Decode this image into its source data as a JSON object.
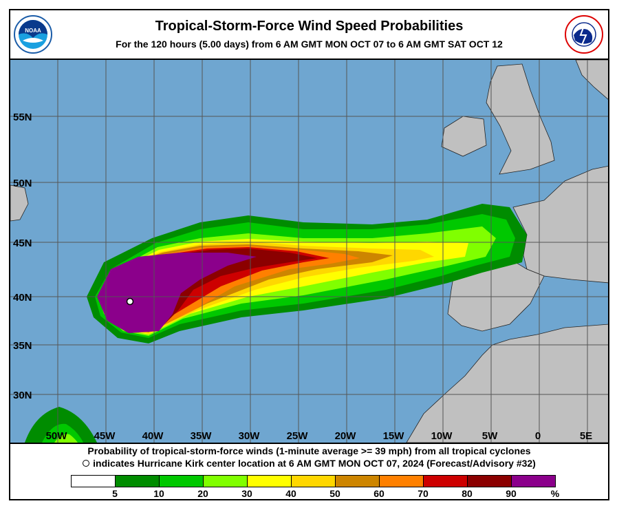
{
  "header": {
    "title": "Tropical-Storm-Force Wind Speed Probabilities",
    "subtitle": "For the 120 hours (5.00 days) from 6 AM GMT MON OCT 07 to 6 AM GMT SAT OCT 12",
    "left_logo": "NOAA",
    "right_logo": "NATIONAL WEATHER SERVICE"
  },
  "map": {
    "lat_labels": [
      "55N",
      "50N",
      "45N",
      "40N",
      "35N",
      "30N"
    ],
    "lon_labels": [
      "50W",
      "45W",
      "40W",
      "35W",
      "30W",
      "25W",
      "20W",
      "15W",
      "10W",
      "5W",
      "0",
      "5E"
    ],
    "ocean_color": "#6fa6d0",
    "land_color": "#c0c0c0",
    "storm_marker": "Hurricane Kirk center (open circle)"
  },
  "footer": {
    "line1": "Probability of tropical-storm-force winds (1-minute average >= 39 mph) from all tropical cyclones",
    "line2": "indicates Hurricane Kirk center location at 6 AM GMT MON OCT 07, 2024 (Forecast/Advisory #32)"
  },
  "legend": {
    "colors": [
      "#ffffff",
      "#008c00",
      "#00c800",
      "#80ff00",
      "#ffff00",
      "#ffd700",
      "#cd8500",
      "#ff8000",
      "#cd0000",
      "#8b0000",
      "#8b008b"
    ],
    "ticks": [
      "5",
      "10",
      "20",
      "30",
      "40",
      "50",
      "60",
      "70",
      "80",
      "90",
      "%"
    ]
  }
}
